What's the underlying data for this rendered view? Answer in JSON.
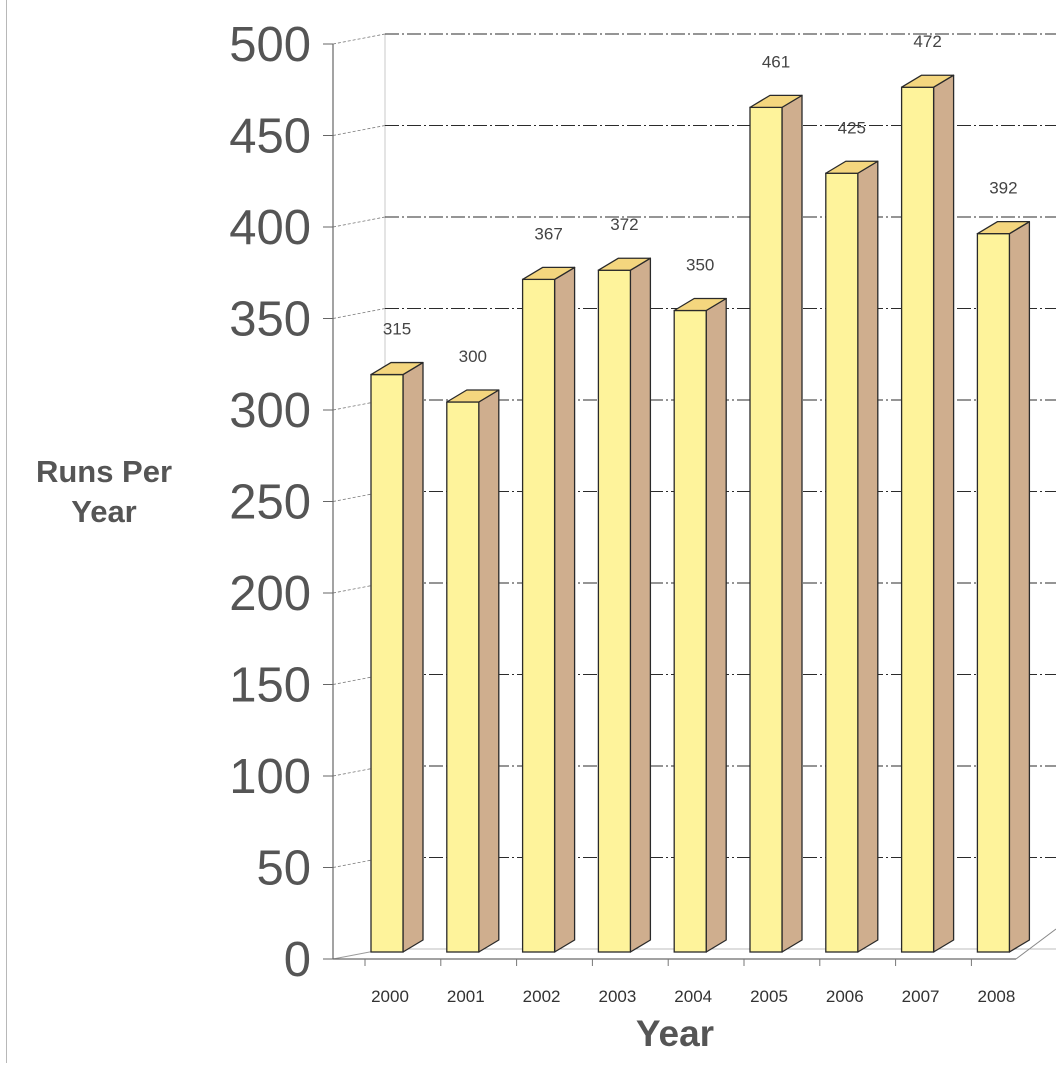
{
  "chart_data": {
    "type": "bar",
    "style": "3d-column",
    "categories": [
      "2000",
      "2001",
      "2002",
      "2003",
      "2004",
      "2005",
      "2006",
      "2007",
      "2008"
    ],
    "values": [
      315,
      300,
      367,
      372,
      350,
      461,
      425,
      472,
      392
    ],
    "data_labels": [
      "315",
      "300",
      "367",
      "372",
      "350",
      "461",
      "425",
      "472",
      "392"
    ],
    "yticks": [
      "0",
      "50",
      "100",
      "150",
      "200",
      "250",
      "300",
      "350",
      "400",
      "450",
      "500"
    ],
    "xlabel": "Year",
    "ylabel": "Runs Per\nYear",
    "ylim": [
      0,
      500
    ],
    "grid": true,
    "legend": "none",
    "colors": {
      "bar_front": "#fef39b",
      "bar_top": "#f4d67e",
      "bar_side": "#cfae8e",
      "bar_edge": "#2a2a2a",
      "grid": "#2b2b2b",
      "axis_text": "#555555",
      "label_text": "#444444"
    }
  }
}
